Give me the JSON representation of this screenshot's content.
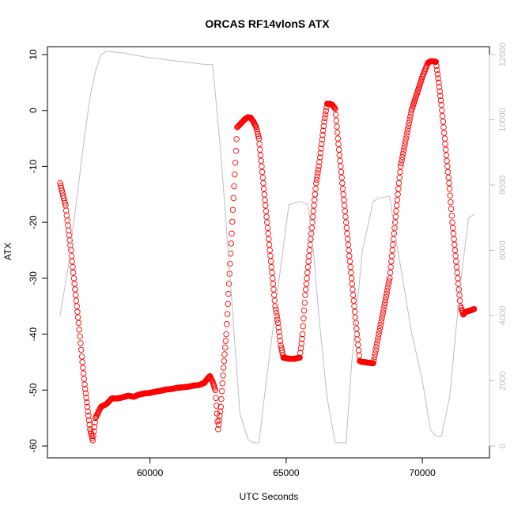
{
  "chart_data": {
    "type": "scatter",
    "title": "ORCAS RF14vlonS ATX",
    "xlabel": "UTC Seconds",
    "ylabel": "ATX",
    "xlim": [
      56700,
      72000
    ],
    "ylim": [
      -60,
      10
    ],
    "y2lim": [
      0,
      12000
    ],
    "x_ticks": [
      60000,
      65000,
      70000
    ],
    "x_tick_labels": [
      "60000",
      "65000",
      "70000"
    ],
    "y_ticks": [
      -60,
      -50,
      -40,
      -30,
      -20,
      -10,
      0,
      10
    ],
    "y_tick_labels": [
      "-60",
      "-50",
      "-40",
      "-30",
      "-20",
      "-10",
      "0",
      "10"
    ],
    "y2_ticks": [
      0,
      2000,
      4000,
      6000,
      8000,
      10000,
      12000
    ],
    "y2_tick_labels": [
      "0",
      "2000",
      "4000",
      "6000",
      "8000",
      "10000",
      "12000"
    ],
    "grid": false,
    "legend": "none",
    "colors": {
      "points": "#ff0000",
      "altitude_line": "#bebebe",
      "axis": "#000000",
      "right_axis": "#bebebe"
    },
    "series": [
      {
        "marker": "open-circle",
        "axis": "left",
        "x": [
          56700,
          56900,
          57100,
          57250,
          57380,
          57500,
          57600,
          57700,
          57800,
          57900,
          58000,
          58200,
          58400,
          58600,
          58800,
          59000,
          59200,
          59400,
          59600,
          59800,
          60000,
          60200,
          60400,
          60600,
          60800,
          61000,
          61200,
          61400,
          61600,
          61800,
          62000,
          62100,
          62200,
          62300,
          62400,
          62500,
          62600,
          62700,
          62800,
          62900,
          63000,
          63200,
          63400,
          63500,
          63600,
          63700,
          63800,
          63900,
          64000,
          64100,
          64200,
          64300,
          64400,
          64500,
          64600,
          64700,
          64800,
          64900,
          65000,
          65100,
          65300,
          65500,
          65600,
          65700,
          65800,
          65900,
          66000,
          66100,
          66200,
          66300,
          66400,
          66500,
          66600,
          66700,
          66800,
          66900,
          67000,
          67100,
          67200,
          67300,
          67400,
          67500,
          67600,
          67700,
          67800,
          67900,
          68000,
          68200,
          68400,
          68600,
          68800,
          68900,
          69000,
          69100,
          69200,
          69400,
          69600,
          69800,
          70000,
          70200,
          70300,
          70400,
          70500,
          70600,
          70700,
          70800,
          70900,
          71000,
          71100,
          71200,
          71300,
          71400,
          71500,
          71600,
          71800,
          71900
        ],
        "y": [
          -13,
          -17,
          -25,
          -32,
          -38,
          -44,
          -49,
          -53,
          -57,
          -59,
          -55,
          -53,
          -52.5,
          -51.5,
          -51.5,
          -51.3,
          -51,
          -51.2,
          -50.8,
          -50.6,
          -50.5,
          -50.3,
          -50.1,
          -49.9,
          -49.8,
          -49.6,
          -49.5,
          -49.4,
          -49.2,
          -49.1,
          -48.7,
          -48,
          -47.5,
          -48.5,
          -50,
          -57,
          -53,
          -46,
          -40,
          -31,
          -22,
          -3,
          -2,
          -1.5,
          -1.2,
          -1.3,
          -2,
          -3,
          -5,
          -10,
          -15,
          -20,
          -25,
          -30,
          -35,
          -38,
          -42,
          -44.2,
          -44.3,
          -44.4,
          -44.4,
          -44.2,
          -40,
          -33,
          -28,
          -23,
          -18,
          -13,
          -10,
          -6,
          -2,
          1.2,
          1.2,
          1,
          0.3,
          -5,
          -10,
          -15,
          -20,
          -25,
          -30,
          -35,
          -40,
          -44.8,
          -45,
          -45,
          -45.1,
          -45.2,
          -40,
          -35,
          -30,
          -25,
          -20,
          -15,
          -10,
          -5,
          0,
          3,
          6,
          8.5,
          8.8,
          8.8,
          8.7,
          5,
          1,
          -4,
          -9,
          -14,
          -20,
          -25,
          -30,
          -35,
          -36.5,
          -36,
          -35.7,
          -35.5
        ]
      },
      {
        "marker": "line",
        "axis": "right",
        "x": [
          56700,
          57000,
          57300,
          57600,
          57800,
          58000,
          58200,
          58400,
          59000,
          60000,
          61000,
          62000,
          62300,
          62600,
          63000,
          63300,
          63600,
          63800,
          64000,
          64200,
          64500,
          64800,
          65100,
          65500,
          65800,
          66000,
          66200,
          66500,
          66800,
          67000,
          67200,
          67400,
          67800,
          68200,
          68400,
          68800,
          69000,
          69200,
          69600,
          70000,
          70300,
          70500,
          70700,
          71000,
          71400,
          71700,
          71900
        ],
        "y": [
          4000,
          5500,
          7500,
          9500,
          10700,
          11500,
          12000,
          12100,
          12050,
          11900,
          11800,
          11700,
          11700,
          9000,
          4500,
          1000,
          200,
          100,
          100,
          1500,
          3500,
          5500,
          7400,
          7500,
          7400,
          6000,
          4000,
          1500,
          100,
          100,
          100,
          2500,
          6000,
          7500,
          7600,
          7650,
          6500,
          5500,
          3500,
          2000,
          500,
          300,
          300,
          1500,
          5000,
          7000,
          7100
        ]
      }
    ]
  }
}
